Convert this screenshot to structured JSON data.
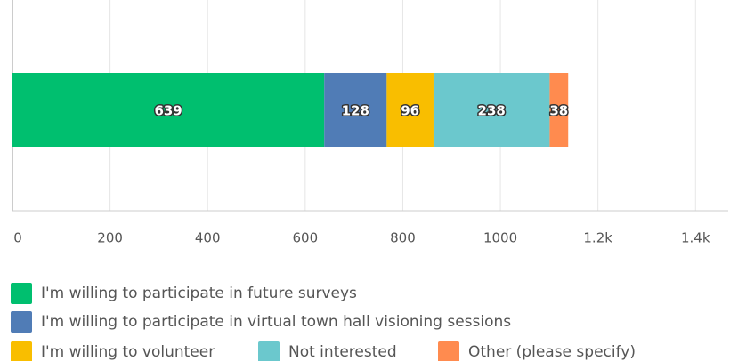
{
  "chart_data": {
    "type": "bar",
    "orientation": "horizontal",
    "stacked": true,
    "categories": [
      null
    ],
    "series": [
      {
        "name": "I'm willing to participate in future surveys",
        "color": "#00bf6f",
        "values": [
          639
        ]
      },
      {
        "name": "I'm willing to participate in virtual town hall visioning sessions",
        "color": "#507cb6",
        "values": [
          128
        ]
      },
      {
        "name": "I'm willing to volunteer",
        "color": "#f9be00",
        "values": [
          96
        ]
      },
      {
        "name": "Not interested",
        "color": "#6bc8cd",
        "values": [
          238
        ]
      },
      {
        "name": "Other (please specify)",
        "color": "#ff8b4f",
        "values": [
          38
        ]
      }
    ],
    "xlim": [
      0,
      1467
    ],
    "xticks": [
      0,
      200,
      400,
      600,
      800,
      1000,
      {
        "value": 1200,
        "label": "1.2k"
      },
      {
        "value": 1400,
        "label": "1.4k"
      }
    ],
    "grid": true,
    "legend": "bottom",
    "data_labels": true
  }
}
